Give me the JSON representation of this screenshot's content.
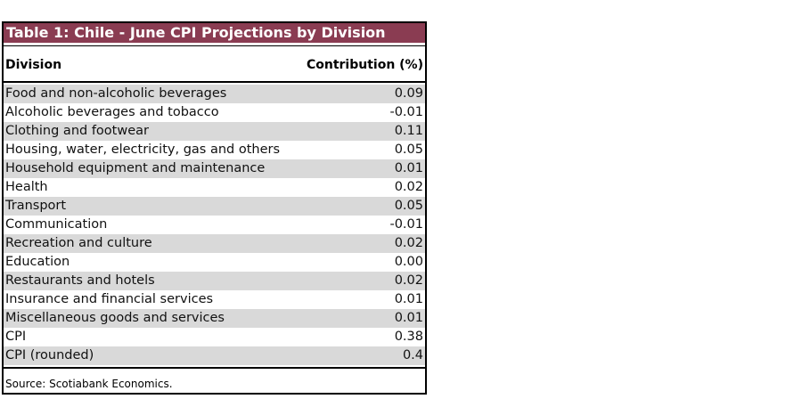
{
  "header": {
    "title": "Table 1: Chile - June CPI Projections by Division"
  },
  "table": {
    "columns": [
      "Division",
      "Contribution (%)"
    ],
    "rows": [
      [
        "Food and non-alcoholic beverages",
        "0.09"
      ],
      [
        "Alcoholic beverages and tobacco",
        "-0.01"
      ],
      [
        "Clothing and footwear",
        "0.11"
      ],
      [
        "Housing, water, electricity, gas and others",
        "0.05"
      ],
      [
        "Household equipment and maintenance",
        "0.01"
      ],
      [
        "Health",
        "0.02"
      ],
      [
        "Transport",
        "0.05"
      ],
      [
        "Communication",
        "-0.01"
      ],
      [
        "Recreation and culture",
        "0.02"
      ],
      [
        "Education",
        "0.00"
      ],
      [
        "Restaurants and hotels",
        "0.02"
      ],
      [
        "Insurance and financial services",
        "0.01"
      ],
      [
        "Miscellaneous goods and services",
        "0.01"
      ],
      [
        "CPI",
        "0.38"
      ],
      [
        "CPI (rounded)",
        "0.4"
      ]
    ]
  },
  "footer": {
    "source": "Source: Scotiabank Economics."
  }
}
